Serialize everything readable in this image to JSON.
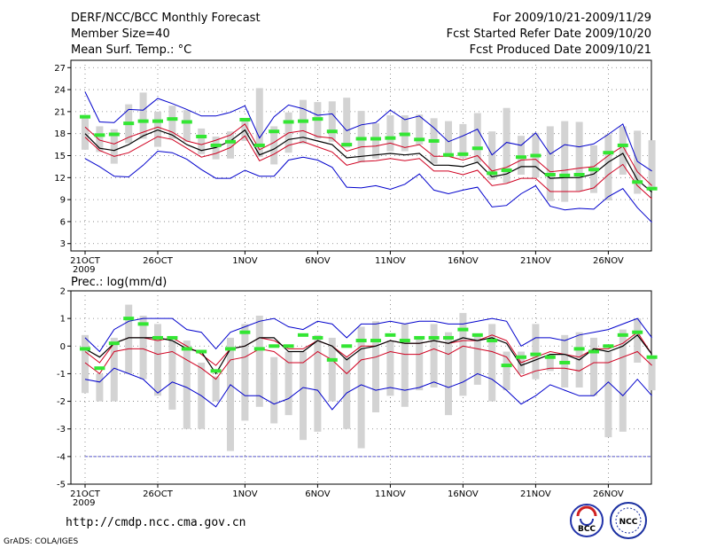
{
  "header": {
    "title": "DERF/NCC/BCC Monthly Forecast",
    "member_size": "Member Size=40",
    "variable": "Mean Surf. Temp.: °C",
    "period": "For 2009/10/21-2009/11/29",
    "started": "Fcst Started Refer Date 2009/10/20",
    "produced": "Fcst Produced Date 2009/10/21"
  },
  "footer": {
    "url": "http://cmdp.ncc.cma.gov.cn",
    "credit": "GrADS: COLA/IGES",
    "logo1_text": "BCC",
    "logo2_text": "NCC"
  },
  "colors": {
    "box": "#d3d3d3",
    "mean": "#000000",
    "inner": "#d00020",
    "outer": "#0000cc",
    "dot": "#33e633"
  },
  "chart_data": [
    {
      "id": "temperature",
      "type": "line",
      "title": "Mean Surf. Temp.: °C",
      "ylim": [
        2,
        28
      ],
      "yticks": [
        3,
        6,
        9,
        12,
        15,
        18,
        21,
        24,
        27
      ],
      "x": [
        1,
        2,
        3,
        4,
        5,
        6,
        7,
        8,
        9,
        10,
        11,
        12,
        13,
        14,
        15,
        16,
        17,
        18,
        19,
        20,
        21,
        22,
        23,
        24,
        25,
        26,
        27,
        28,
        29,
        30,
        31,
        32,
        33,
        34,
        35,
        36,
        37,
        38,
        39,
        40
      ],
      "xtick_positions": [
        1,
        6,
        12,
        17,
        22,
        27,
        32,
        37
      ],
      "xtick_labels": [
        "21OCT",
        "26OCT",
        "1NOV",
        "6NOV",
        "11NOV",
        "16NOV",
        "21NOV",
        "26NOV"
      ],
      "xtick_sublabel": "2009",
      "series": [
        {
          "name": "max",
          "values": [
            23.7,
            19.6,
            19.5,
            21.3,
            21.2,
            22.8,
            22.1,
            21.3,
            20.4,
            20.4,
            20.9,
            21.8,
            17.4,
            20.3,
            21.9,
            21.4,
            20.5,
            20.7,
            18.4,
            19.2,
            19.5,
            21.2,
            19.9,
            20.4,
            18.8,
            16.9,
            17.7,
            18.6,
            15.1,
            16.8,
            16.4,
            18.1,
            15.2,
            16.5,
            16.2,
            16.6,
            17.9,
            19.3,
            14.2,
            12.9
          ]
        },
        {
          "name": "upper",
          "values": [
            18.9,
            17.1,
            16.6,
            17.5,
            18.2,
            18.9,
            18.2,
            17.0,
            16.5,
            17.1,
            17.8,
            19.3,
            15.8,
            16.8,
            18.1,
            18.4,
            17.6,
            17.4,
            15.6,
            16.2,
            16.3,
            16.7,
            16.1,
            16.5,
            14.9,
            14.9,
            14.4,
            15.0,
            12.9,
            13.4,
            14.4,
            14.5,
            12.8,
            13.0,
            13.3,
            13.5,
            15.0,
            16.3,
            12.8,
            10.9
          ]
        },
        {
          "name": "mean",
          "values": [
            18.0,
            16.0,
            15.7,
            16.5,
            17.7,
            18.5,
            17.8,
            16.5,
            15.7,
            16.1,
            17.0,
            18.5,
            15.1,
            15.9,
            17.2,
            17.5,
            17.0,
            16.5,
            14.7,
            14.9,
            15.1,
            15.3,
            15.1,
            15.3,
            13.7,
            13.7,
            13.5,
            14.1,
            12.1,
            12.5,
            13.5,
            13.5,
            11.9,
            12.0,
            12.0,
            12.5,
            14.1,
            15.3,
            11.7,
            10.0
          ]
        },
        {
          "name": "lower",
          "values": [
            17.5,
            15.7,
            14.9,
            15.4,
            16.5,
            17.6,
            17.2,
            16.0,
            14.8,
            15.3,
            16.1,
            17.7,
            14.3,
            15.2,
            16.4,
            16.9,
            16.2,
            15.5,
            13.7,
            14.2,
            14.3,
            14.6,
            14.3,
            14.6,
            12.9,
            12.9,
            12.4,
            13.0,
            10.9,
            11.2,
            11.9,
            11.9,
            10.1,
            10.1,
            10.1,
            10.6,
            12.4,
            13.8,
            10.9,
            9.1
          ]
        },
        {
          "name": "min",
          "values": [
            14.6,
            13.5,
            12.2,
            12.1,
            13.7,
            15.6,
            15.4,
            14.5,
            13.1,
            11.9,
            11.9,
            13.0,
            12.2,
            12.2,
            14.4,
            14.8,
            14.4,
            13.4,
            10.7,
            10.6,
            10.9,
            10.4,
            11.1,
            12.5,
            10.3,
            9.8,
            10.3,
            10.7,
            8.0,
            8.2,
            9.8,
            10.9,
            8.1,
            7.6,
            7.8,
            7.7,
            9.4,
            10.5,
            7.9,
            5.9
          ]
        },
        {
          "name": "box_top",
          "values": [
            20.5,
            19.0,
            18.6,
            22.0,
            23.6,
            21.0,
            21.8,
            21.2,
            18.7,
            17.6,
            18.3,
            19.9,
            24.2,
            19.0,
            20.9,
            22.6,
            22.3,
            22.4,
            22.9,
            21.1,
            19.4,
            20.5,
            20.5,
            20.6,
            20.1,
            19.7,
            19.3,
            20.8,
            18.3,
            21.5,
            17.7,
            18.1,
            19.0,
            19.7,
            19.6,
            16.4,
            17.9,
            19.0,
            18.4,
            17.1
          ]
        },
        {
          "name": "box_bottom",
          "values": [
            15.8,
            15.5,
            13.9,
            16.7,
            17.3,
            16.2,
            17.3,
            16.9,
            15.2,
            14.5,
            14.6,
            17.0,
            14.8,
            13.8,
            15.4,
            16.6,
            17.3,
            16.9,
            16.1,
            14.1,
            14.6,
            15.6,
            15.6,
            16.5,
            13.9,
            14.8,
            14.7,
            14.1,
            11.7,
            11.3,
            12.4,
            12.0,
            8.8,
            8.7,
            10.2,
            9.9,
            8.9,
            12.4,
            9.8,
            10.7
          ]
        },
        {
          "name": "obs",
          "values": [
            20.3,
            17.8,
            17.9,
            19.4,
            19.7,
            19.7,
            20.0,
            19.6,
            17.6,
            16.4,
            16.9,
            19.9,
            16.4,
            18.3,
            19.6,
            19.7,
            20.0,
            18.3,
            16.5,
            17.3,
            17.3,
            17.4,
            17.9,
            17.2,
            17.0,
            15.1,
            15.2,
            16.0,
            12.6,
            13.0,
            14.8,
            15.0,
            12.4,
            12.3,
            12.4,
            13.1,
            15.4,
            16.4,
            11.4,
            10.5
          ]
        }
      ]
    },
    {
      "id": "precipitation",
      "type": "line",
      "title": "Prec.: log(mm/d)",
      "ylim": [
        -5,
        2
      ],
      "yticks": [
        -5,
        -4,
        -3,
        -2,
        -1,
        0,
        1,
        2
      ],
      "floor_value": -4,
      "x": [
        1,
        2,
        3,
        4,
        5,
        6,
        7,
        8,
        9,
        10,
        11,
        12,
        13,
        14,
        15,
        16,
        17,
        18,
        19,
        20,
        21,
        22,
        23,
        24,
        25,
        26,
        27,
        28,
        29,
        30,
        31,
        32,
        33,
        34,
        35,
        36,
        37,
        38,
        39,
        40
      ],
      "xtick_positions": [
        1,
        6,
        12,
        17,
        22,
        27,
        32,
        37
      ],
      "xtick_labels": [
        "21OCT",
        "26OCT",
        "1NOV",
        "6NOV",
        "11NOV",
        "16NOV",
        "21NOV",
        "26NOV"
      ],
      "xtick_sublabel": "2009",
      "series": [
        {
          "name": "max",
          "values": [
            0.3,
            -0.2,
            0.6,
            0.9,
            1.0,
            1.0,
            1.0,
            0.6,
            0.5,
            -0.1,
            0.5,
            0.7,
            0.9,
            1.0,
            0.7,
            0.6,
            0.9,
            0.8,
            0.3,
            0.8,
            0.8,
            0.9,
            0.8,
            0.9,
            0.9,
            0.8,
            0.8,
            0.9,
            1.0,
            0.9,
            0.0,
            0.3,
            0.3,
            0.2,
            0.4,
            0.5,
            0.6,
            0.8,
            1.0,
            0.3
          ]
        },
        {
          "name": "upper",
          "values": [
            -0.2,
            -0.6,
            0.1,
            0.3,
            0.3,
            0.2,
            0.3,
            0.0,
            -0.3,
            -0.7,
            -0.1,
            0.0,
            0.3,
            0.2,
            -0.1,
            -0.1,
            0.2,
            0.0,
            -0.4,
            0.0,
            0.0,
            0.2,
            0.1,
            0.1,
            0.2,
            0.1,
            0.2,
            0.2,
            0.4,
            0.2,
            -0.6,
            -0.4,
            -0.2,
            -0.3,
            -0.4,
            -0.1,
            -0.1,
            0.1,
            0.5,
            -0.3
          ]
        },
        {
          "name": "mean",
          "values": [
            -0.1,
            -0.4,
            0.1,
            0.3,
            0.3,
            0.3,
            0.2,
            -0.1,
            -0.2,
            -1.0,
            -0.1,
            0.0,
            0.3,
            0.3,
            -0.2,
            -0.2,
            0.2,
            0.0,
            -0.5,
            -0.1,
            0.0,
            0.2,
            0.1,
            0.1,
            0.2,
            0.1,
            0.3,
            0.2,
            0.3,
            0.1,
            -0.7,
            -0.5,
            -0.3,
            -0.3,
            -0.5,
            -0.1,
            -0.2,
            0.0,
            0.4,
            -0.3
          ]
        },
        {
          "name": "lower",
          "values": [
            -0.6,
            -1.0,
            -0.2,
            -0.1,
            -0.1,
            -0.3,
            -0.2,
            -0.5,
            -0.8,
            -1.2,
            -0.5,
            -0.4,
            -0.1,
            -0.2,
            -0.6,
            -0.6,
            -0.2,
            -0.5,
            -1.0,
            -0.5,
            -0.4,
            -0.2,
            -0.3,
            -0.3,
            -0.1,
            -0.3,
            0.0,
            -0.1,
            -0.2,
            -0.4,
            -1.1,
            -0.9,
            -0.8,
            -0.8,
            -0.9,
            -0.6,
            -0.6,
            -0.4,
            -0.2,
            -0.7
          ]
        },
        {
          "name": "min",
          "values": [
            -1.2,
            -1.3,
            -0.8,
            -1.0,
            -1.2,
            -1.7,
            -1.3,
            -1.5,
            -1.8,
            -2.2,
            -1.4,
            -1.8,
            -1.8,
            -2.1,
            -1.9,
            -1.5,
            -1.6,
            -2.3,
            -1.7,
            -1.4,
            -1.6,
            -1.5,
            -1.6,
            -1.5,
            -1.3,
            -1.5,
            -1.3,
            -1.0,
            -1.2,
            -1.6,
            -2.1,
            -1.8,
            -1.4,
            -1.6,
            -1.8,
            -1.8,
            -1.3,
            -1.8,
            -1.2,
            -1.8
          ]
        },
        {
          "name": "box_top",
          "values": [
            0.4,
            -1.0,
            0.3,
            1.5,
            1.1,
            0.8,
            0.2,
            0.2,
            -0.6,
            -1.1,
            0.3,
            0.8,
            1.1,
            -0.4,
            -0.2,
            -0.2,
            0.4,
            0.3,
            -0.4,
            0.7,
            0.9,
            0.2,
            0.8,
            0.3,
            0.8,
            0.5,
            1.2,
            0.4,
            0.8,
            -0.2,
            -0.2,
            0.8,
            -0.3,
            0.4,
            0.5,
            0.3,
            -0.2,
            0.6,
            1.0,
            -0.4
          ]
        },
        {
          "name": "box_bottom",
          "values": [
            -1.7,
            -2.0,
            -2.0,
            -1.0,
            -1.2,
            -1.8,
            -2.3,
            -3.0,
            -3.0,
            -2.0,
            -3.8,
            -2.7,
            -2.2,
            -2.8,
            -2.5,
            -3.4,
            -3.1,
            -2.0,
            -3.0,
            -3.7,
            -2.4,
            -1.8,
            -2.2,
            -1.6,
            -1.5,
            -2.5,
            -1.8,
            -1.4,
            -2.0,
            -1.6,
            -1.0,
            -1.2,
            -0.9,
            -1.5,
            -1.5,
            -1.8,
            -3.3,
            -3.1,
            -0.6,
            -1.6
          ]
        },
        {
          "name": "obs",
          "values": [
            -0.1,
            -0.8,
            0.1,
            1.0,
            0.8,
            0.3,
            0.3,
            -0.1,
            -0.2,
            -0.9,
            -0.1,
            0.5,
            -0.1,
            0.0,
            0.0,
            0.4,
            0.3,
            -0.5,
            0.0,
            0.2,
            0.2,
            0.4,
            0.2,
            0.3,
            0.3,
            0.3,
            0.6,
            0.4,
            0.2,
            -0.7,
            -0.4,
            -0.3,
            -0.4,
            -0.6,
            -0.1,
            -0.2,
            0.0,
            0.4,
            0.5,
            -0.4
          ]
        }
      ]
    }
  ]
}
